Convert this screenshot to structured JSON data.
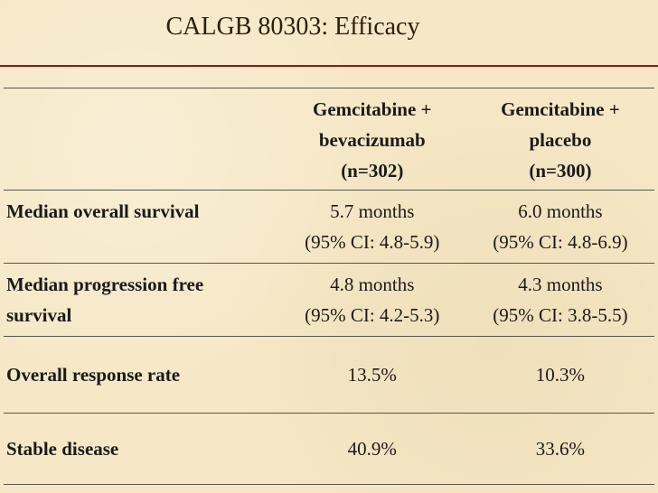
{
  "title": "CALGB 80303: Efficacy",
  "columns": [
    {
      "line1": "Gemcitabine +",
      "line2": "bevacizumab",
      "line3": "(n=302)"
    },
    {
      "line1": "Gemcitabine +",
      "line2": "placebo",
      "line3": "(n=300)"
    }
  ],
  "rows": [
    {
      "label": "Median overall survival",
      "label_line1": "Median overall survival",
      "label_line2": "",
      "col1_line1": "5.7 months",
      "col1_line2": "(95% CI: 4.8-5.9)",
      "col2_line1": "6.0 months",
      "col2_line2": "(95% CI: 4.8-6.9)"
    },
    {
      "label_line1": "Median progression free",
      "label_line2": "survival",
      "col1_line1": "4.8 months",
      "col1_line2": "(95% CI: 4.2-5.3)",
      "col2_line1": "4.3 months",
      "col2_line2": "(95% CI: 3.8-5.5)"
    },
    {
      "label_line1": "Overall response rate",
      "col1_line1": "13.5%",
      "col2_line1": "10.3%"
    },
    {
      "label_line1": "Stable disease",
      "col1_line1": "40.9%",
      "col2_line1": "33.6%"
    }
  ],
  "colors": {
    "background": "#f6e8c6",
    "title_rule": "#8b1a1a",
    "text": "#1a1a1a"
  }
}
